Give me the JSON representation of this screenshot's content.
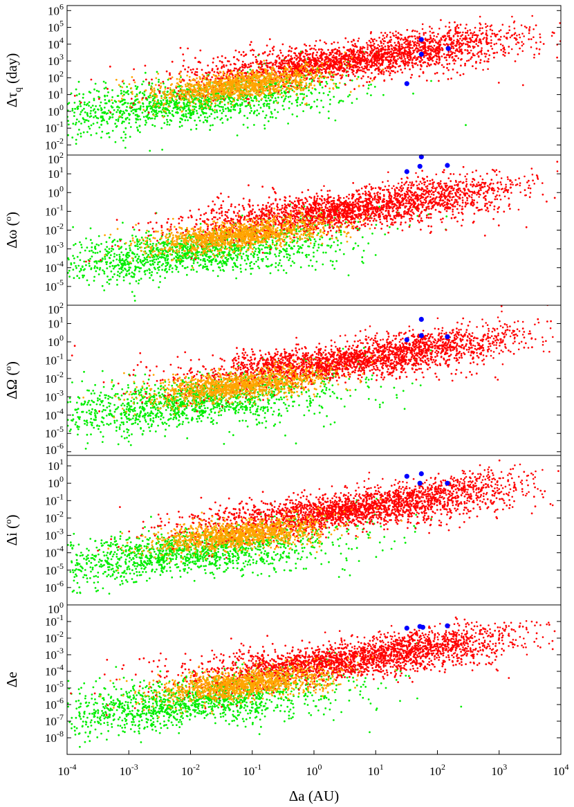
{
  "chart_data": {
    "type": "scatter",
    "shared_x": {
      "label": "Δa (AU)",
      "scale": "log",
      "range": [
        0.0001,
        10000.0
      ],
      "tick_exponents": [
        -4,
        -3,
        -2,
        -1,
        0,
        1,
        2,
        3,
        4
      ]
    },
    "series_colors": {
      "red": "#ff0000",
      "orange": "#ffa500",
      "green": "#00ee00",
      "blue": "#0000ff"
    },
    "panels": [
      {
        "id": "tau",
        "ylabel": "Δτq (day)",
        "ylabel_main": "Δτ",
        "ylabel_sub": "q",
        "ylabel_suffix": " (day)",
        "scale": "log",
        "y_exp_range": [
          -2.6,
          6.3
        ],
        "tick_exponents": [
          -2,
          -1,
          0,
          1,
          2,
          3,
          4,
          5,
          6
        ],
        "blue_points": [
          [
            32,
            45
          ],
          [
            55,
            19000
          ],
          [
            150,
            5500
          ],
          [
            55,
            2500
          ]
        ]
      },
      {
        "id": "omega",
        "ylabel": "Δω (o)",
        "ylabel_main": "Δω",
        "ylabel_sup": "o",
        "scale": "log",
        "y_exp_range": [
          -6.0,
          2.0
        ],
        "tick_exponents": [
          -5,
          -4,
          -3,
          -2,
          -1,
          0,
          1,
          2
        ],
        "blue_points": [
          [
            32,
            13
          ],
          [
            55,
            80
          ],
          [
            52,
            25
          ],
          [
            145,
            28
          ]
        ]
      },
      {
        "id": "Omega",
        "ylabel": "ΔΩ (o)",
        "ylabel_main": "ΔΩ",
        "ylabel_sup": "o",
        "scale": "log",
        "y_exp_range": [
          -6.2,
          2.0
        ],
        "tick_exponents": [
          -6,
          -5,
          -4,
          -3,
          -2,
          -1,
          0,
          1,
          2
        ],
        "blue_points": [
          [
            32,
            1.3
          ],
          [
            55,
            2.2
          ],
          [
            55,
            17
          ],
          [
            145,
            1.9
          ]
        ]
      },
      {
        "id": "i",
        "ylabel": "Δi (o)",
        "ylabel_main": "Δi",
        "ylabel_sup": "o",
        "scale": "log",
        "y_exp_range": [
          -7.0,
          1.6
        ],
        "tick_exponents": [
          -6,
          -5,
          -4,
          -3,
          -2,
          -1,
          0,
          1
        ],
        "blue_points": [
          [
            32,
            2.5
          ],
          [
            55,
            3.5
          ],
          [
            52,
            1.0
          ],
          [
            145,
            1.0
          ]
        ]
      },
      {
        "id": "e",
        "ylabel": "Δe",
        "ylabel_main": "Δe",
        "scale": "log",
        "y_exp_range": [
          -9.0,
          0.0
        ],
        "tick_exponents": [
          -8,
          -7,
          -6,
          -5,
          -4,
          -3,
          -2,
          -1,
          0
        ],
        "blue_points": [
          [
            32,
            0.04
          ],
          [
            52,
            0.05
          ],
          [
            58,
            0.045
          ],
          [
            145,
            0.055
          ]
        ]
      }
    ]
  }
}
